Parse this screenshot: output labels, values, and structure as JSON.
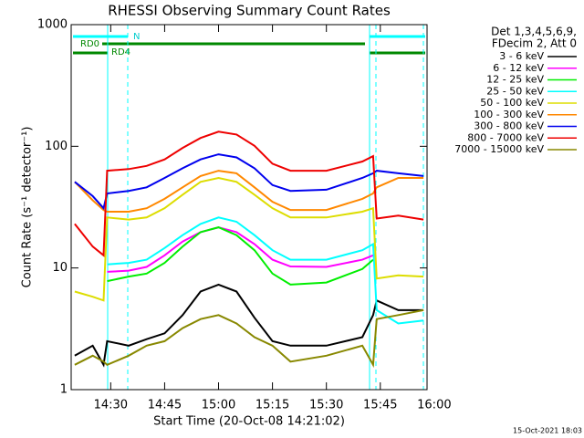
{
  "chart_data": {
    "type": "line",
    "title": "RHESSI Observing Summary Count Rates",
    "x_label": "Start Time (20-Oct-08 14:21:02)",
    "y_label": "Count Rate (s⁻¹ detector⁻¹)",
    "legend_header": [
      "Det 1,3,4,5,6,9,",
      "FDecim 2, Att 0"
    ],
    "annotations": [
      "N",
      "RD0",
      "RD4"
    ],
    "footer": "15-Oct-2021 18:03",
    "log_y": true,
    "xlim": [
      "14:19",
      "15:58"
    ],
    "xticks": [
      "14:30",
      "14:45",
      "15:00",
      "15:15",
      "15:30",
      "15:45",
      "16:00"
    ],
    "ylim": [
      1,
      1000
    ],
    "yticks": [
      1,
      10,
      100,
      1000
    ],
    "x": [
      "14:20",
      "14:25",
      "14:28",
      "14:29",
      "14:35",
      "14:40",
      "14:45",
      "14:50",
      "14:55",
      "15:00",
      "15:05",
      "15:10",
      "15:15",
      "15:20",
      "15:30",
      "15:40",
      "15:43",
      "15:44",
      "15:50",
      "15:57"
    ],
    "series": [
      {
        "name": "3 - 6 keV",
        "color": "#000000",
        "values": [
          1.9,
          2.3,
          1.6,
          2.5,
          2.3,
          2.6,
          2.9,
          4.1,
          6.4,
          7.3,
          6.4,
          3.9,
          2.5,
          2.3,
          2.3,
          2.7,
          4.1,
          5.4,
          4.5,
          4.5
        ]
      },
      {
        "name": "6 - 12 keV",
        "color": "#ff00ff",
        "values": [
          null,
          null,
          null,
          9.3,
          9.5,
          10.2,
          12.7,
          16.5,
          19.7,
          21.6,
          19.7,
          15.7,
          11.7,
          10.3,
          10.2,
          11.7,
          12.7,
          null,
          null,
          null
        ]
      },
      {
        "name": "12 - 25 keV",
        "color": "#00ee00",
        "values": [
          null,
          null,
          null,
          7.8,
          8.5,
          9,
          11,
          15,
          19.7,
          21.6,
          18.6,
          14,
          9,
          7.3,
          7.6,
          9.8,
          11.7,
          null,
          null,
          null
        ]
      },
      {
        "name": "25 - 50 keV",
        "color": "#00ffff",
        "values": [
          null,
          null,
          null,
          10.7,
          11,
          11.7,
          14.6,
          18.6,
          23,
          26,
          24,
          18.6,
          14,
          11.7,
          11.7,
          14,
          15.7,
          4.5,
          3.5,
          3.7
        ]
      },
      {
        "name": "50 - 100 keV",
        "color": "#dddd00",
        "values": [
          6.4,
          5.8,
          5.4,
          26,
          25,
          26,
          31,
          40,
          51,
          55,
          51,
          40,
          31,
          26,
          26,
          29,
          31,
          8.2,
          8.7,
          8.5
        ]
      },
      {
        "name": "100 - 300 keV",
        "color": "#ff8800",
        "values": [
          51,
          36,
          30,
          29,
          29,
          31,
          37,
          46,
          57,
          63,
          60,
          46,
          35,
          30,
          30,
          37,
          41,
          46,
          55,
          55
        ]
      },
      {
        "name": "300 - 800 keV",
        "color": "#0000ee",
        "values": [
          51,
          39,
          31,
          41,
          43,
          46,
          55,
          66,
          78,
          86,
          81,
          66,
          48,
          43,
          44,
          55,
          60,
          63,
          60,
          57
        ]
      },
      {
        "name": "800 - 7000 keV",
        "color": "#ee0000",
        "values": [
          23,
          15,
          12.7,
          63,
          65,
          69,
          78,
          97,
          117,
          132,
          125,
          101,
          72,
          63,
          63,
          75,
          83,
          25.5,
          27,
          25
        ]
      },
      {
        "name": "7000 - 15000 keV",
        "color": "#888800",
        "values": [
          1.6,
          1.9,
          1.7,
          1.6,
          1.9,
          2.3,
          2.5,
          3.2,
          3.8,
          4.1,
          3.5,
          2.7,
          2.3,
          1.7,
          1.9,
          2.3,
          1.6,
          3.8,
          4.1,
          4.5
        ]
      }
    ]
  }
}
